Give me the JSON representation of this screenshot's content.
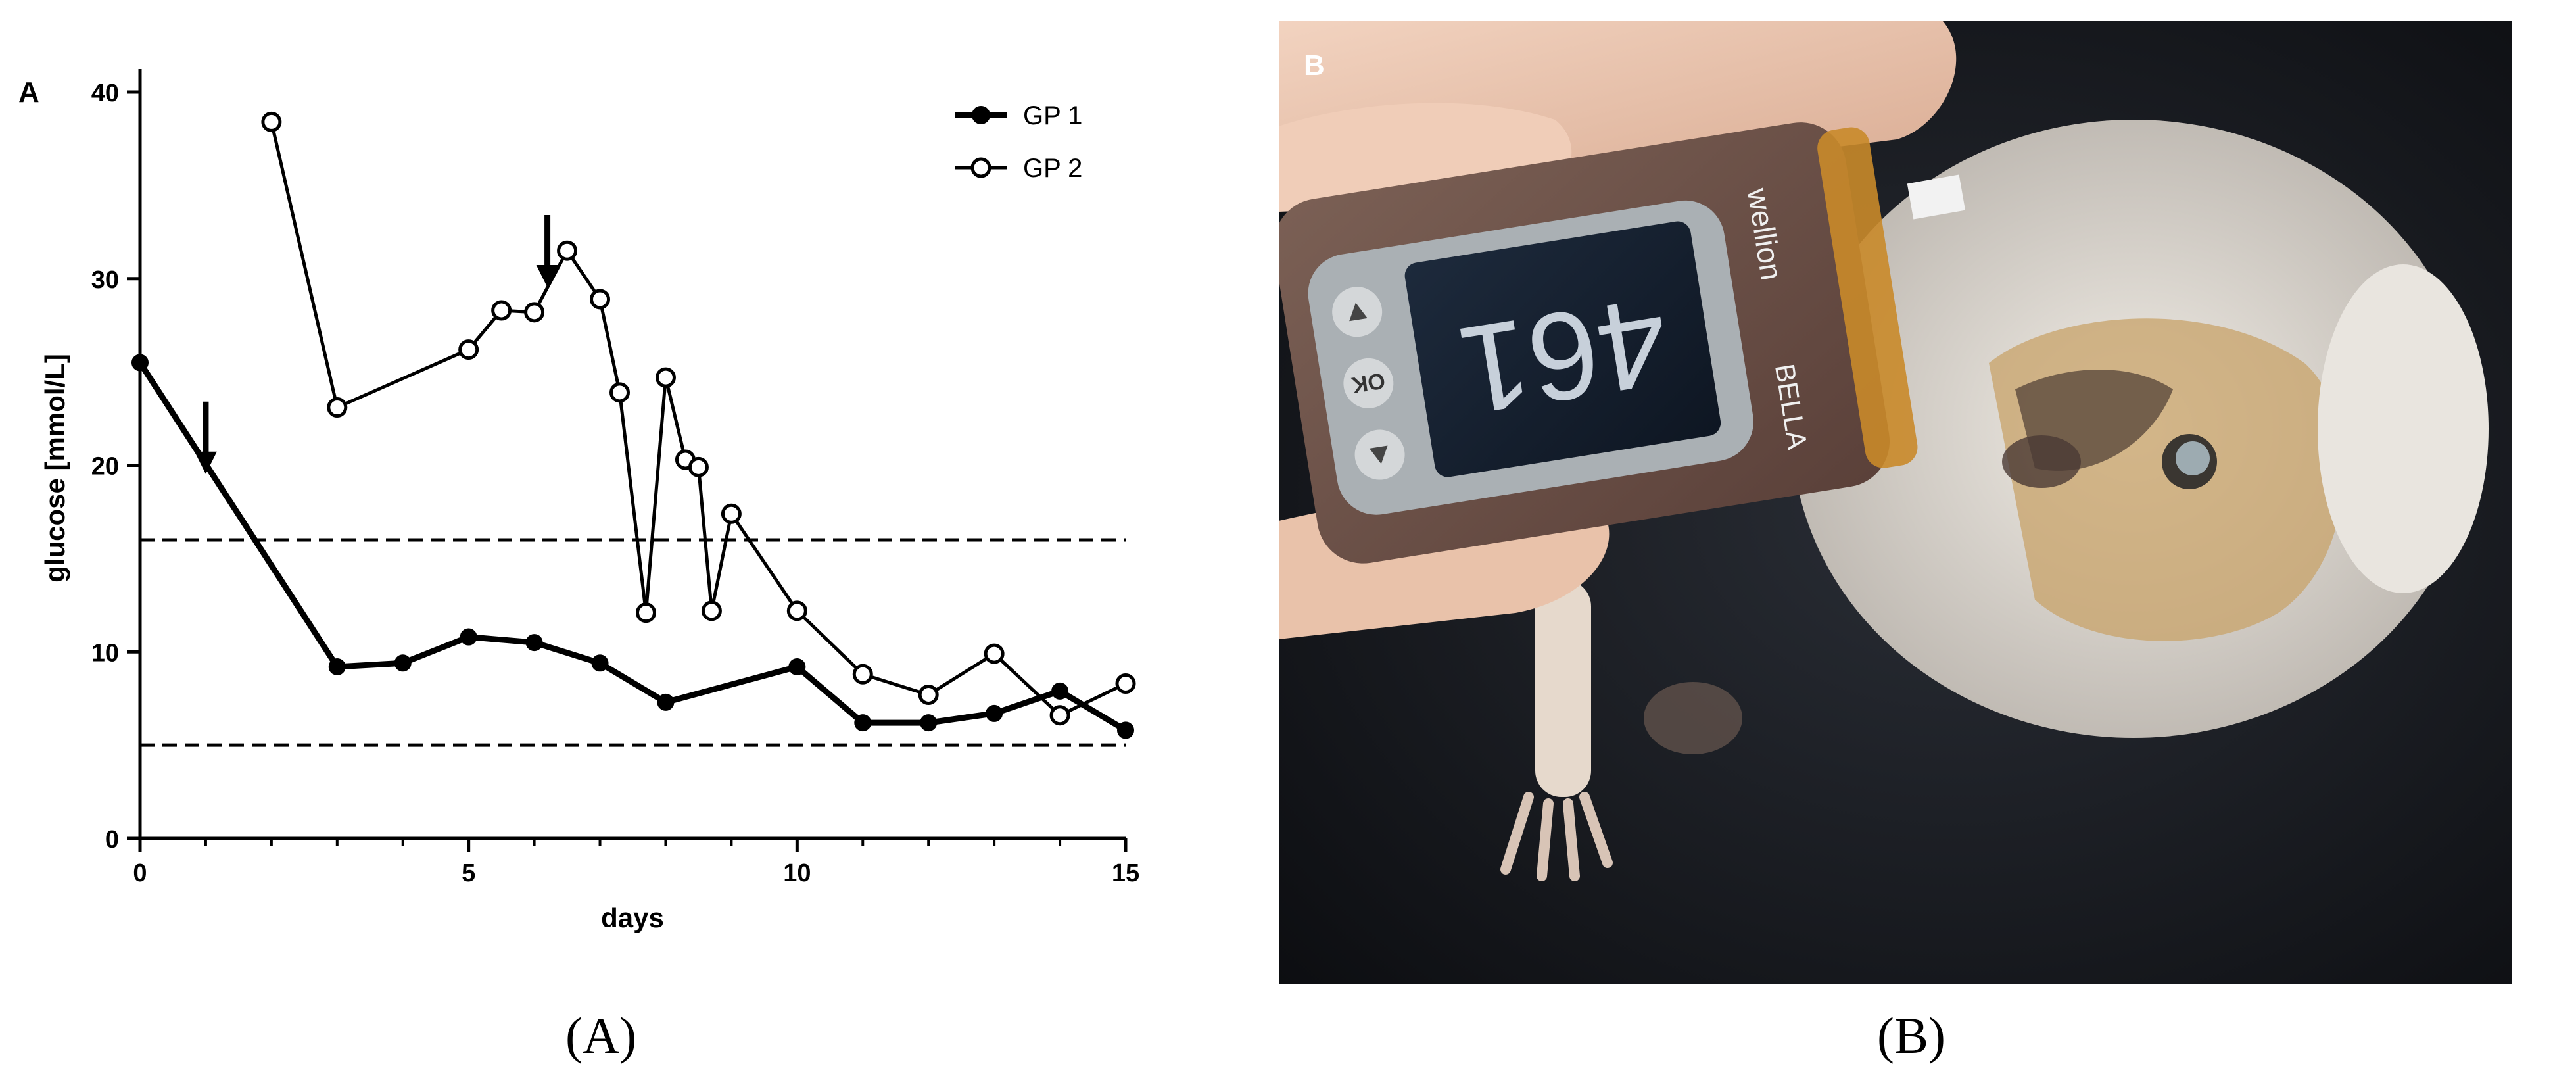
{
  "panel_a_letter": "A",
  "panel_b_letter": "B",
  "caption_a": "(A)",
  "caption_b": "(B)",
  "meter": {
    "brand": "wellion",
    "model": "BELLA",
    "button_ok": "OK",
    "display_value": "461"
  },
  "chart_data": {
    "type": "line",
    "xlabel": "days",
    "ylabel": "glucose [mmol/L]",
    "xlim": [
      0,
      15
    ],
    "ylim": [
      0,
      40
    ],
    "x_ticks": [
      "0",
      "5",
      "10",
      "15"
    ],
    "y_ticks": [
      "0",
      "10",
      "20",
      "30",
      "40"
    ],
    "grid": false,
    "legend_position": "top-right",
    "reference_lines": [
      16,
      5
    ],
    "arrows_at_x": [
      1,
      6.2
    ],
    "series": [
      {
        "name": "GP 1",
        "marker": "filled-circle",
        "x": [
          0,
          3,
          4,
          5,
          6,
          7,
          8,
          10,
          11,
          12,
          13,
          14,
          15
        ],
        "y": [
          25.5,
          9.2,
          9.4,
          10.8,
          10.5,
          9.4,
          7.3,
          9.2,
          6.2,
          6.2,
          6.7,
          7.9,
          5.8
        ]
      },
      {
        "name": "GP 2",
        "marker": "open-circle",
        "x": [
          2,
          3,
          5,
          5.5,
          6,
          6.5,
          7,
          7.3,
          7.7,
          8,
          8.3,
          8.5,
          8.7,
          9,
          10,
          11,
          12,
          13,
          14,
          15
        ],
        "y": [
          38.4,
          23.1,
          26.2,
          28.3,
          28.2,
          31.5,
          28.9,
          23.9,
          12.1,
          24.7,
          20.3,
          19.9,
          12.2,
          17.4,
          12.2,
          8.8,
          7.7,
          9.9,
          6.6,
          8.3
        ]
      }
    ]
  }
}
